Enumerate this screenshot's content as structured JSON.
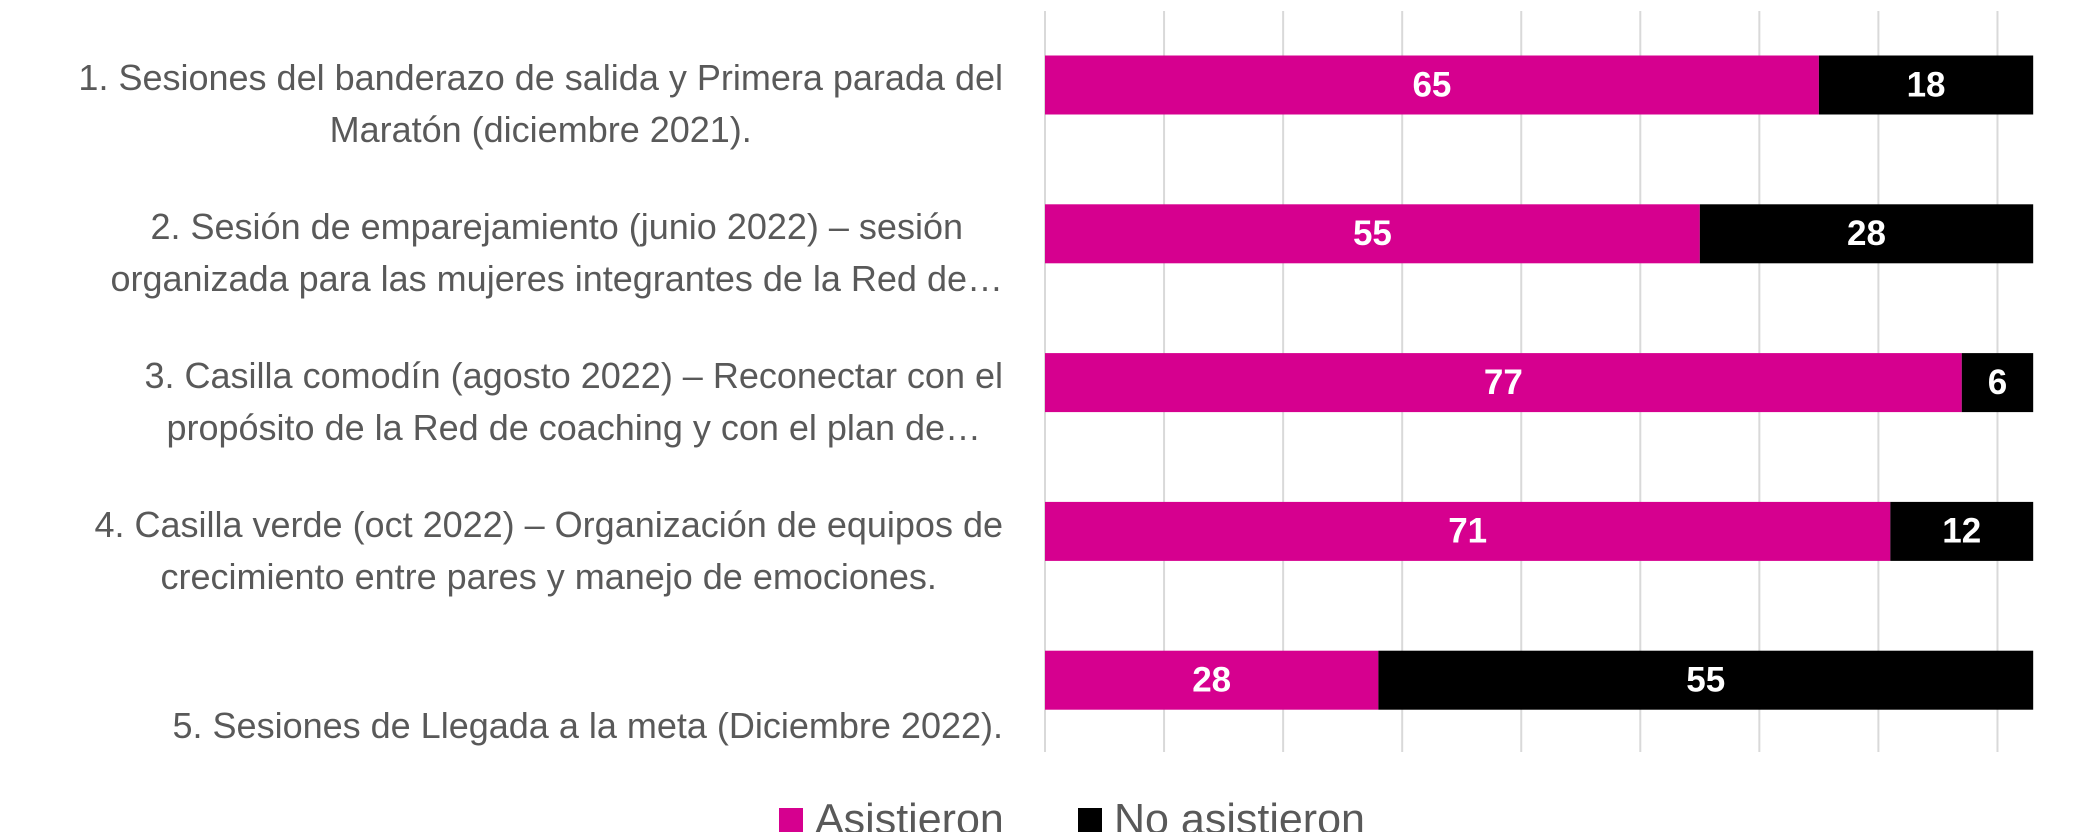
{
  "chart_data": {
    "type": "stacked-barh",
    "categories": [
      [
        "1. Sesiones del banderazo de salida y Primera parada del",
        "Maratón (diciembre 2021)."
      ],
      [
        "2. Sesión de emparejamiento (junio 2022) – sesión",
        "organizada para las mujeres integrantes de la Red de…"
      ],
      [
        "3. Casilla comodín (agosto 2022) – Reconectar con el",
        "propósito de la Red de coaching y con el plan de…"
      ],
      [
        "4. Casilla verde (oct 2022) – Organización de equipos de",
        "crecimiento entre pares y manejo de emociones."
      ],
      [
        "5. Sesiones de Llegada a la meta (Diciembre 2022)."
      ]
    ],
    "series": [
      {
        "name": "Asistieron",
        "color": "#d6008f",
        "values": [
          65,
          55,
          77,
          71,
          28
        ]
      },
      {
        "name": "No asistieron",
        "color": "#000000",
        "values": [
          18,
          28,
          6,
          12,
          55
        ]
      }
    ],
    "xlim": [
      0,
      85
    ],
    "xticks": [
      0,
      10,
      20,
      30,
      40,
      50,
      60,
      70,
      80
    ],
    "grid": true,
    "legend": "bottom"
  }
}
